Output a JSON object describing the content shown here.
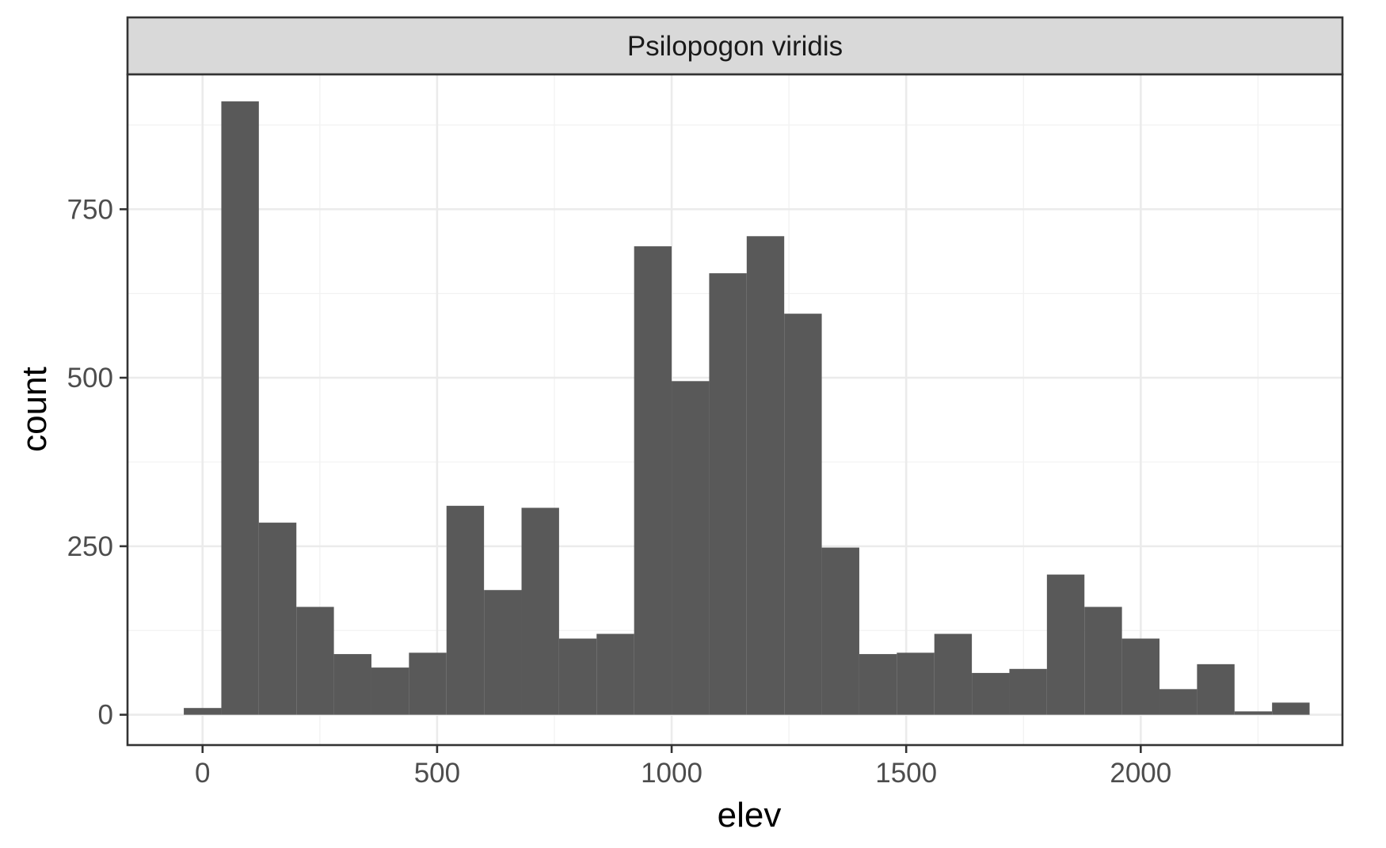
{
  "chart_data": {
    "type": "bar",
    "subtype": "histogram",
    "facet_label": "Psilopogon viridis",
    "xlabel": "elev",
    "ylabel": "count",
    "xlim": [
      -160,
      2430
    ],
    "ylim": [
      -45,
      950
    ],
    "x_ticks": [
      0,
      500,
      1000,
      1500,
      2000
    ],
    "y_ticks": [
      0,
      250,
      500,
      750
    ],
    "x_tick_labels": [
      "0",
      "500",
      "1000",
      "1500",
      "2000"
    ],
    "y_tick_labels": [
      "0",
      "250",
      "500",
      "750"
    ],
    "grid": true,
    "bin_width": 80,
    "bin_start": -40,
    "values": [
      10,
      910,
      285,
      160,
      90,
      70,
      92,
      310,
      185,
      307,
      113,
      120,
      695,
      495,
      655,
      710,
      595,
      248,
      90,
      92,
      120,
      62,
      68,
      208,
      160,
      113,
      38,
      75,
      5,
      18
    ],
    "colors": {
      "bar": "#595959",
      "strip_background": "#d9d9d9",
      "panel_border": "#333333",
      "grid": "#ebebeb"
    }
  }
}
